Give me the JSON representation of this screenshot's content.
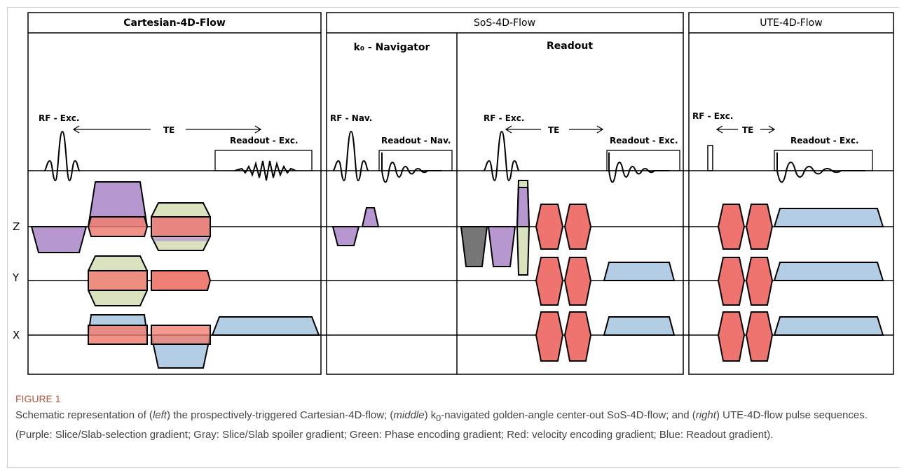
{
  "panels": {
    "cartesian": "Cartesian-4D-Flow",
    "sos": "SoS-4D-Flow",
    "sos_nav": "k₀ - Navigator",
    "sos_readout": "Readout",
    "ute": "UTE-4D-Flow"
  },
  "labels": {
    "rf_exc_1": "RF - Exc.",
    "te_1": "TE",
    "readout_exc_1": "Readout - Exc.",
    "rf_nav": "RF - Nav.",
    "readout_nav": "Readout - Nav.",
    "rf_exc_2": "RF - Exc.",
    "te_2": "TE",
    "readout_exc_2": "Readout - Exc.",
    "rf_exc_3": "RF - Exc.",
    "te_3": "TE",
    "readout_exc_3": "Readout - Exc."
  },
  "axes": [
    "Z",
    "Y",
    "X"
  ],
  "caption": {
    "label": "FIGURE 1",
    "parts": [
      "Schematic representation of (",
      "left",
      ") the prospectively-triggered Cartesian-4D-flow; (",
      "middle",
      ") k",
      "0",
      "-navigated golden-angle center-out SoS-4D-flow; and (",
      "right",
      ") UTE-4D-flow pulse sequences. (Purple: Slice/Slab-selection gradient; Gray: Slice/Slab spoiler gradient; Green: Phase encoding gradient; Red: velocity encoding gradient; Blue: Readout gradient)."
    ]
  }
}
